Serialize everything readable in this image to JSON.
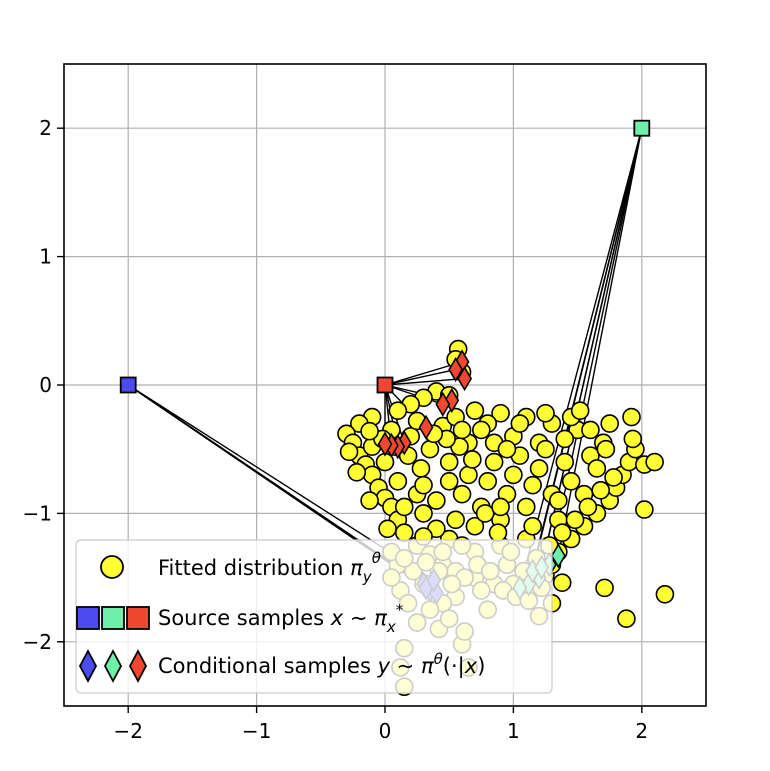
{
  "chart_data": {
    "type": "scatter",
    "title": "",
    "xlabel": "",
    "ylabel": "",
    "xlim": [
      -2.5,
      2.5
    ],
    "ylim": [
      -2.5,
      2.5
    ],
    "grid": true,
    "xticks": [
      -2,
      -1,
      0,
      1,
      2
    ],
    "yticks": [
      -2,
      -1,
      0,
      1,
      2
    ],
    "xtick_labels": [
      "−2",
      "−1",
      "0",
      "1",
      "2"
    ],
    "ytick_labels": [
      "−2",
      "−1",
      "0",
      "1",
      "2"
    ],
    "legend": {
      "placement": "lower-left",
      "entries": [
        {
          "label": "Fitted distribution πyθ",
          "marker": "circle"
        },
        {
          "label": "Source samples x ∼ πx*",
          "marker": "square"
        },
        {
          "label": "Conditional samples y ∼ πθ(·|x)",
          "marker": "diamond"
        }
      ]
    },
    "colors": {
      "fitted": "#ffff33",
      "source_blue": "#4b4bf0",
      "source_green": "#6ff0a8",
      "source_red": "#f04830",
      "edge": "#000000",
      "grid": "#b0b0b0"
    },
    "series": [
      {
        "name": "Fitted distribution πyθ",
        "marker": "circle",
        "points": [
          [
            0.57,
            0.28
          ],
          [
            0.55,
            0.2
          ],
          [
            0.6,
            0.1
          ],
          [
            0.4,
            -0.05
          ],
          [
            0.3,
            -0.1
          ],
          [
            0.5,
            -0.08
          ],
          [
            0.2,
            -0.15
          ],
          [
            0.1,
            -0.2
          ],
          [
            -0.1,
            -0.25
          ],
          [
            -0.2,
            -0.3
          ],
          [
            -0.3,
            -0.38
          ],
          [
            -0.25,
            -0.45
          ],
          [
            -0.2,
            -0.55
          ],
          [
            -0.15,
            -0.62
          ],
          [
            -0.1,
            -0.7
          ],
          [
            -0.05,
            -0.8
          ],
          [
            0.0,
            -0.88
          ],
          [
            0.05,
            -0.95
          ],
          [
            0.1,
            -1.05
          ],
          [
            0.15,
            -1.15
          ],
          [
            0.25,
            -1.25
          ],
          [
            0.35,
            -1.32
          ],
          [
            0.45,
            -1.4
          ],
          [
            0.55,
            -1.45
          ],
          [
            0.7,
            -1.5
          ],
          [
            0.85,
            -1.55
          ],
          [
            1.0,
            -1.55
          ],
          [
            1.15,
            -1.52
          ],
          [
            1.25,
            -1.48
          ],
          [
            1.3,
            -1.4
          ],
          [
            1.35,
            -1.3
          ],
          [
            1.45,
            -1.2
          ],
          [
            1.55,
            -1.1
          ],
          [
            1.65,
            -1.0
          ],
          [
            1.75,
            -0.9
          ],
          [
            1.8,
            -0.8
          ],
          [
            1.85,
            -0.7
          ],
          [
            1.9,
            -0.6
          ],
          [
            1.95,
            -0.5
          ],
          [
            1.93,
            -0.42
          ],
          [
            1.92,
            -0.25
          ],
          [
            2.02,
            -0.62
          ],
          [
            2.1,
            -0.6
          ],
          [
            2.02,
            -0.97
          ],
          [
            1.88,
            -1.82
          ],
          [
            1.71,
            -1.58
          ],
          [
            2.18,
            -1.63
          ],
          [
            1.38,
            -1.54
          ],
          [
            1.3,
            -1.7
          ],
          [
            1.2,
            -1.8
          ],
          [
            0.15,
            -2.05
          ],
          [
            0.12,
            -2.2
          ],
          [
            0.15,
            -2.35
          ],
          [
            0.6,
            -2.02
          ],
          [
            0.8,
            -1.75
          ],
          [
            0.62,
            -1.92
          ],
          [
            0.55,
            -1.65
          ],
          [
            0.45,
            -1.7
          ],
          [
            0.3,
            -1.55
          ],
          [
            0.22,
            -1.45
          ],
          [
            0.1,
            -1.4
          ],
          [
            0.05,
            -1.3
          ],
          [
            0.15,
            -1.35
          ],
          [
            0.35,
            -1.55
          ],
          [
            0.7,
            -1.3
          ],
          [
            0.9,
            -1.25
          ],
          [
            1.1,
            -1.2
          ],
          [
            0.95,
            -1.4
          ],
          [
            0.75,
            -1.6
          ],
          [
            0.5,
            -1.2
          ],
          [
            0.3,
            -1.0
          ],
          [
            0.4,
            -0.9
          ],
          [
            0.6,
            -0.85
          ],
          [
            0.8,
            -0.75
          ],
          [
            1.0,
            -0.7
          ],
          [
            1.2,
            -0.65
          ],
          [
            1.4,
            -0.6
          ],
          [
            1.6,
            -0.55
          ],
          [
            1.7,
            -0.45
          ],
          [
            1.5,
            -0.35
          ],
          [
            1.3,
            -0.3
          ],
          [
            1.1,
            -0.25
          ],
          [
            0.9,
            -0.22
          ],
          [
            0.7,
            -0.2
          ],
          [
            0.8,
            -0.3
          ],
          [
            1.0,
            -0.4
          ],
          [
            1.2,
            -0.45
          ],
          [
            1.4,
            -0.42
          ],
          [
            1.6,
            -0.35
          ],
          [
            1.75,
            -0.3
          ],
          [
            0.2,
            -0.4
          ],
          [
            0.35,
            -0.5
          ],
          [
            0.5,
            -0.6
          ],
          [
            0.65,
            -0.7
          ],
          [
            0.85,
            -0.6
          ],
          [
            1.05,
            -0.55
          ],
          [
            1.25,
            -0.5
          ],
          [
            1.45,
            -0.75
          ],
          [
            1.3,
            -0.85
          ],
          [
            1.1,
            -0.95
          ],
          [
            0.9,
            -1.05
          ],
          [
            0.7,
            -1.1
          ],
          [
            0.55,
            -1.05
          ],
          [
            0.4,
            -1.12
          ],
          [
            0.25,
            -0.85
          ],
          [
            0.1,
            -0.75
          ],
          [
            0.0,
            -0.6
          ],
          [
            -0.1,
            -0.48
          ],
          [
            0.05,
            -0.35
          ],
          [
            0.25,
            -0.28
          ],
          [
            0.45,
            -0.32
          ],
          [
            0.65,
            -0.45
          ],
          [
            0.85,
            -0.45
          ],
          [
            1.05,
            -0.3
          ],
          [
            1.25,
            -0.22
          ],
          [
            1.45,
            -0.25
          ],
          [
            1.65,
            -0.65
          ],
          [
            1.55,
            -0.85
          ],
          [
            1.35,
            -1.05
          ],
          [
            1.15,
            -1.1
          ],
          [
            0.95,
            -0.85
          ],
          [
            0.75,
            -0.95
          ],
          [
            0.6,
            -1.25
          ],
          [
            0.45,
            -1.3
          ],
          [
            0.3,
            -1.18
          ],
          [
            0.15,
            -0.95
          ],
          [
            0.02,
            -1.12
          ],
          [
            -0.12,
            -0.9
          ],
          [
            -0.22,
            -0.68
          ],
          [
            -0.28,
            -0.52
          ],
          [
            1.78,
            -0.72
          ],
          [
            1.68,
            -0.82
          ],
          [
            1.58,
            -0.95
          ],
          [
            1.48,
            -1.05
          ],
          [
            1.38,
            -1.15
          ],
          [
            1.28,
            -1.25
          ],
          [
            1.18,
            -1.35
          ],
          [
            1.08,
            -1.45
          ],
          [
            0.98,
            -1.3
          ],
          [
            0.88,
            -1.15
          ],
          [
            0.78,
            -1.0
          ],
          [
            0.68,
            -0.58
          ],
          [
            0.58,
            -0.48
          ],
          [
            0.48,
            -0.42
          ],
          [
            0.38,
            -0.38
          ],
          [
            0.28,
            -0.65
          ],
          [
            0.18,
            -0.55
          ],
          [
            0.08,
            -0.48
          ],
          [
            -0.02,
            -0.42
          ],
          [
            -0.12,
            -0.36
          ],
          [
            0.72,
            -1.4
          ],
          [
            0.62,
            -1.5
          ],
          [
            0.52,
            -1.55
          ],
          [
            0.42,
            -1.45
          ],
          [
            0.32,
            -1.38
          ],
          [
            0.82,
            -1.45
          ],
          [
            0.92,
            -1.6
          ],
          [
            1.02,
            -1.65
          ],
          [
            0.12,
            -1.6
          ],
          [
            0.05,
            -1.5
          ],
          [
            0.65,
            -2.2
          ],
          [
            0.25,
            -1.85
          ],
          [
            0.35,
            -1.75
          ],
          [
            0.18,
            -1.7
          ],
          [
            0.42,
            -1.9
          ],
          [
            0.5,
            -1.82
          ],
          [
            1.12,
            -1.68
          ],
          [
            1.22,
            -1.58
          ],
          [
            1.52,
            -0.2
          ],
          [
            1.72,
            -0.5
          ],
          [
            0.12,
            -2.58
          ],
          [
            0.55,
            -0.25
          ],
          [
            0.75,
            -0.35
          ],
          [
            0.95,
            -0.5
          ],
          [
            1.15,
            -0.78
          ],
          [
            1.35,
            -0.9
          ],
          [
            0.5,
            -0.75
          ],
          [
            0.3,
            -0.78
          ],
          [
            0.6,
            -0.35
          ],
          [
            0.9,
            -0.95
          ]
        ]
      },
      {
        "name": "Source samples x ∼ πx*",
        "marker": "square",
        "points": [
          [
            -2.0,
            0.0
          ],
          [
            2.0,
            2.0
          ],
          [
            0.0,
            0.0
          ]
        ],
        "point_colors": [
          "#4b4bf0",
          "#6ff0a8",
          "#f04830"
        ]
      },
      {
        "name": "Conditional samples y ∼ πθ(·|x)",
        "marker": "diamond",
        "groups": [
          {
            "source": [
              -2.0,
              0.0
            ],
            "color": "#4b4bf0",
            "points": [
              [
                0.3,
                -1.55
              ],
              [
                0.35,
                -1.6
              ],
              [
                0.4,
                -1.62
              ],
              [
                0.32,
                -1.58
              ],
              [
                0.38,
                -1.52
              ]
            ]
          },
          {
            "source": [
              2.0,
              2.0
            ],
            "color": "#6ff0a8",
            "points": [
              [
                1.35,
                -1.33
              ],
              [
                1.28,
                -1.4
              ],
              [
                1.2,
                -1.5
              ],
              [
                1.12,
                -1.55
              ],
              [
                1.05,
                -1.58
              ],
              [
                1.15,
                -1.45
              ],
              [
                1.22,
                -1.42
              ]
            ]
          },
          {
            "source": [
              0.0,
              0.0
            ],
            "color": "#f04830",
            "points": [
              [
                0.6,
                0.18
              ],
              [
                0.55,
                0.12
              ],
              [
                0.62,
                0.05
              ],
              [
                0.52,
                -0.12
              ],
              [
                0.45,
                -0.15
              ],
              [
                0.32,
                -0.33
              ],
              [
                0.15,
                -0.45
              ],
              [
                0.1,
                -0.48
              ],
              [
                0.05,
                -0.47
              ],
              [
                0.0,
                -0.46
              ]
            ]
          }
        ]
      }
    ]
  }
}
